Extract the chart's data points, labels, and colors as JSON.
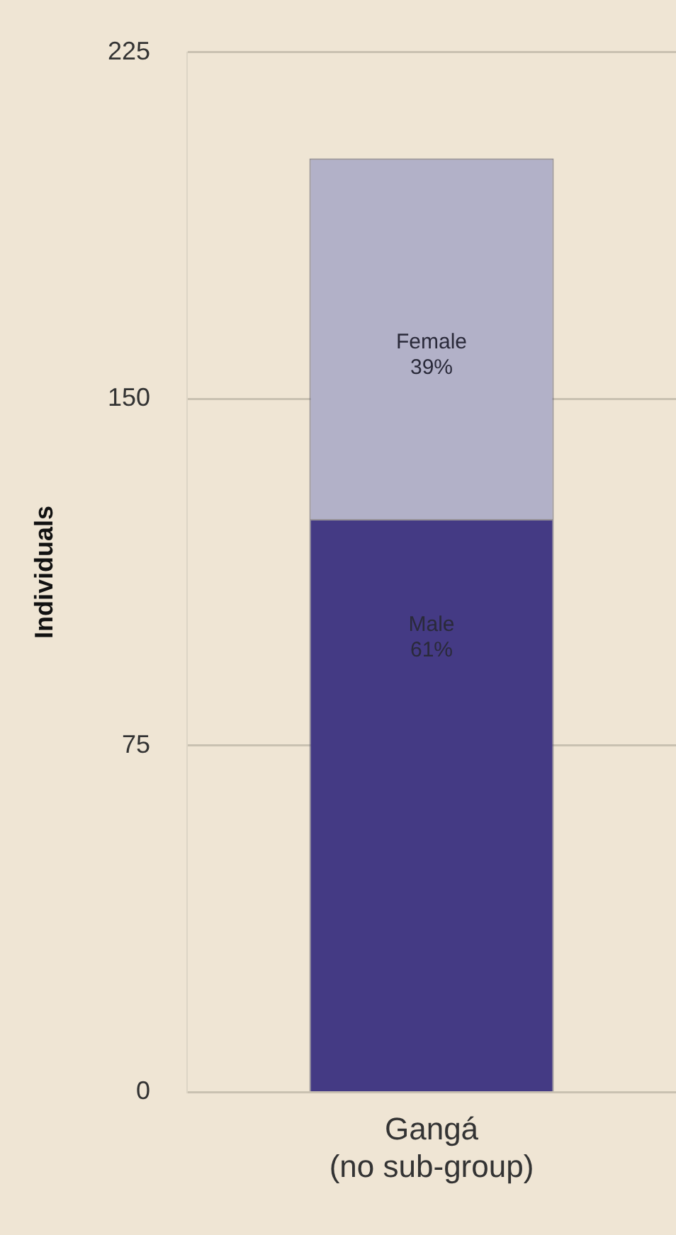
{
  "chart_data": {
    "type": "bar",
    "stacked": true,
    "ylabel": "Individuals",
    "categories": [
      "Gangá\n(no sub-group)"
    ],
    "series": [
      {
        "name": "Male",
        "color": "#443a84",
        "values": [
          124
        ]
      },
      {
        "name": "Female",
        "color": "#b2b1c8",
        "values": [
          78
        ]
      }
    ],
    "annotations": [
      "61%",
      "39%"
    ],
    "ylim": [
      0,
      225
    ],
    "yticks": [
      0,
      75,
      150,
      225
    ],
    "grid": "y",
    "legend": false
  }
}
